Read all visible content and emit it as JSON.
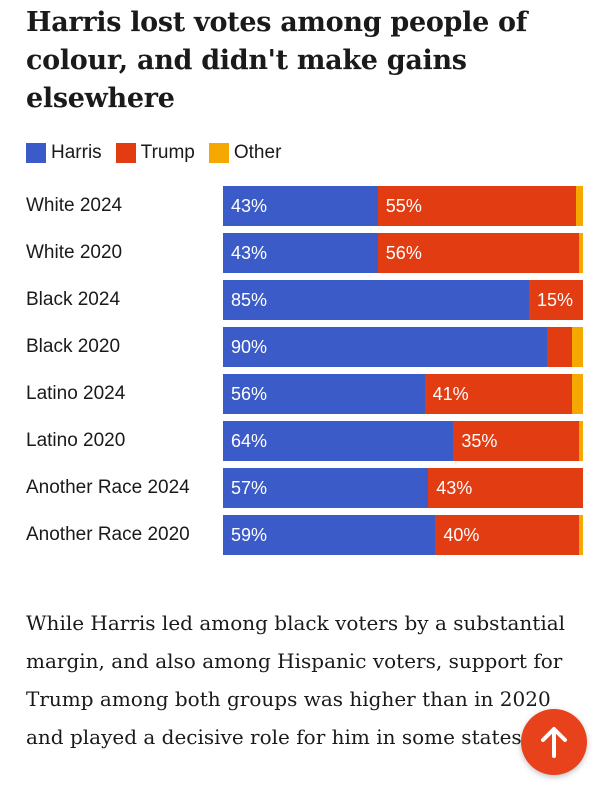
{
  "headline": "Harris lost votes among people of colour, and didn't make gains elsewhere",
  "colors": {
    "Harris": "#3b5bc9",
    "Trump": "#e23c12",
    "Other": "#f5a800",
    "fab": "#e8421c"
  },
  "legend": [
    {
      "label": "Harris",
      "color_key": "Harris"
    },
    {
      "label": "Trump",
      "color_key": "Trump"
    },
    {
      "label": "Other",
      "color_key": "Other"
    }
  ],
  "chart_data": {
    "type": "bar",
    "orientation": "horizontal",
    "stacked": true,
    "percent_scale": true,
    "legend_position": "top-left",
    "categories": [
      "White 2024",
      "White 2020",
      "Black 2024",
      "Black 2020",
      "Latino 2024",
      "Latino 2020",
      "Another Race 2024",
      "Another Race 2020"
    ],
    "series": [
      {
        "name": "Harris",
        "values": [
          43,
          43,
          85,
          90,
          56,
          64,
          57,
          59
        ],
        "labels": [
          "43%",
          "43%",
          "85%",
          "90%",
          "56%",
          "64%",
          "57%",
          "59%"
        ]
      },
      {
        "name": "Trump",
        "values": [
          55,
          56,
          15,
          7,
          41,
          35,
          43,
          40
        ],
        "labels": [
          "55%",
          "56%",
          "15%",
          "",
          "41%",
          "35%",
          "43%",
          "40%"
        ]
      },
      {
        "name": "Other",
        "values": [
          2,
          1,
          0,
          3,
          3,
          1,
          0,
          1
        ],
        "labels": [
          "",
          "",
          "",
          "",
          "",
          "",
          "",
          ""
        ]
      }
    ]
  },
  "body_text": "While Harris led among black voters by a substantial margin, and also among Hispanic voters, support for Trump among both groups was higher than in 2020 and played a decisive role for him in some states.",
  "scroll_top_button": {
    "icon": "arrow-up-icon"
  }
}
